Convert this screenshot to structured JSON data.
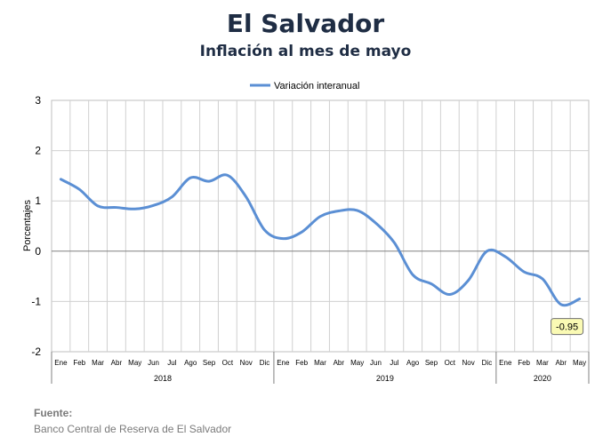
{
  "chart_data": {
    "type": "line",
    "title": "El Salvador",
    "subtitle": "Inflación al mes de mayo",
    "ylabel": "Porcentajes",
    "ylim": [
      -2,
      3
    ],
    "yticks": [
      "3",
      "2",
      "1",
      "0",
      "-1",
      "-2"
    ],
    "legend": "top-center",
    "grid": true,
    "color": "#5b8fd4",
    "months": [
      "Ene",
      "Feb",
      "Mar",
      "Abr",
      "May",
      "Jun",
      "Jul",
      "Ago",
      "Sep",
      "Oct",
      "Nov",
      "Dic",
      "Ene",
      "Feb",
      "Mar",
      "Abr",
      "May",
      "Jun",
      "Jul",
      "Ago",
      "Sep",
      "Oct",
      "Nov",
      "Dic",
      "Ene",
      "Feb",
      "Mar",
      "Abr",
      "May"
    ],
    "years": [
      {
        "label": "2018",
        "count": 12
      },
      {
        "label": "2019",
        "count": 12
      },
      {
        "label": "2020",
        "count": 5
      }
    ],
    "series": [
      {
        "name": "Variación interanual",
        "values": [
          1.43,
          1.23,
          0.9,
          0.87,
          0.84,
          0.91,
          1.08,
          1.46,
          1.39,
          1.51,
          1.08,
          0.42,
          0.25,
          0.38,
          0.69,
          0.8,
          0.81,
          0.56,
          0.17,
          -0.47,
          -0.65,
          -0.86,
          -0.58,
          0.0,
          -0.11,
          -0.41,
          -0.55,
          -1.06,
          -0.95
        ]
      }
    ],
    "annotation": {
      "label": "-0.95",
      "index": 28
    }
  },
  "source": {
    "label": "Fuente:",
    "text": "Banco Central de Reserva de El Salvador"
  }
}
